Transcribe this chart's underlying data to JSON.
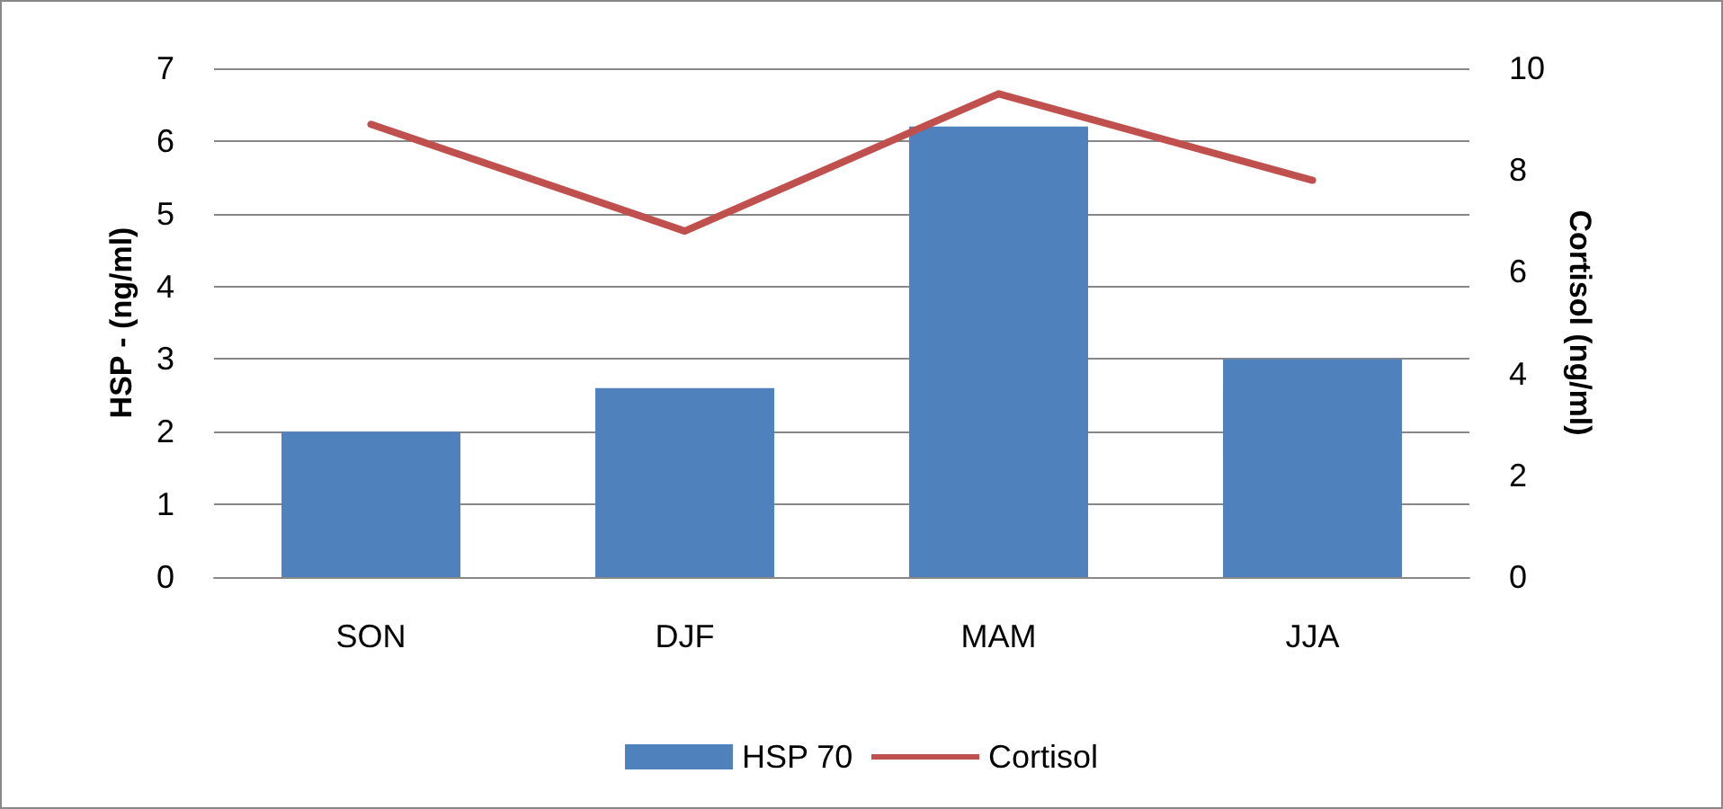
{
  "chart_data": {
    "type": "bar",
    "categories": [
      "SON",
      "DJF",
      "MAM",
      "JJA"
    ],
    "ylabel": "HSP - (ng/ml)",
    "y2label": "Cortisol (ng/ml)",
    "ylim": [
      0,
      7
    ],
    "yticks": [
      0,
      1,
      2,
      3,
      4,
      5,
      6,
      7
    ],
    "y2lim": [
      0,
      10
    ],
    "y2ticks": [
      0,
      2,
      4,
      6,
      8,
      10
    ],
    "series": [
      {
        "name": "HSP 70",
        "color": "#4f81bd",
        "values": [
          2.0,
          2.6,
          6.2,
          3.0
        ]
      },
      {
        "name": "Cortisol",
        "type": "line",
        "axis": "y2",
        "color": "#c0504d",
        "values": [
          8.9,
          6.8,
          9.5,
          7.8
        ],
        "marker": "none",
        "line_style": "solid"
      }
    ],
    "grid": "y",
    "legend": "bottom"
  }
}
